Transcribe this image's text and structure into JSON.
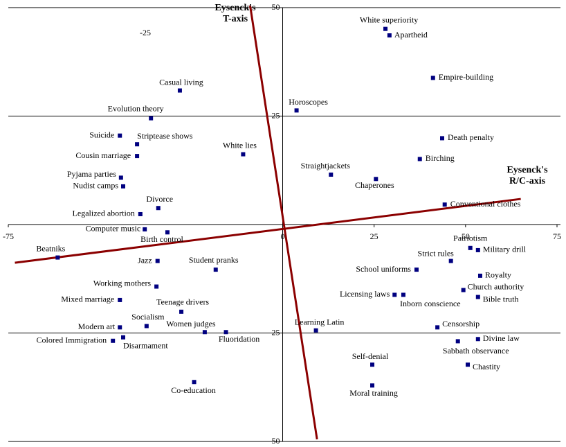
{
  "chart_data": {
    "type": "scatter",
    "color": "#000080",
    "axis_line_color": "#8b0000",
    "xlim": [
      -75,
      75
    ],
    "ylim": [
      -50,
      50
    ],
    "xticks": [
      -75,
      0,
      25,
      50,
      75
    ],
    "yticks": [
      -50,
      -25,
      25,
      50
    ],
    "grid": true,
    "annotations": [
      "-25"
    ],
    "axis_lines": [
      {
        "label": [
          "Eysenck's",
          "T-axis"
        ],
        "x": [
          -8.9,
          9.4
        ],
        "y": [
          50.5,
          -49.5
        ]
      },
      {
        "label": [
          "Eysenck's",
          "R/C-axis"
        ],
        "x": [
          -73.2,
          65.1
        ],
        "y": [
          -8.8,
          5.9
        ]
      }
    ],
    "labels": [
      "White superiority",
      "Apartheid",
      "Empire-building",
      "Casual living",
      "Horoscopes",
      "Evolution theory",
      "Death penalty",
      "Suicide",
      "Striptease shows",
      "White lies",
      "Cousin marriage",
      "Birching",
      "Straightjackets",
      "Chaperones",
      "Pyjama parties",
      "Nudist camps",
      "Conventional clothes",
      "Divorce",
      "Legalized abortion",
      "Computer music",
      "Birth control",
      "Patriotism",
      "Military drill",
      "Beatniks",
      "Strict rules",
      "Jazz",
      "Student pranks",
      "School uniforms",
      "Royalty",
      "Working mothers",
      "Church authority",
      "Licensing laws",
      "Inborn conscience",
      "Bible truth",
      "Mixed marriage",
      "Teenage drivers",
      "Censorship",
      "Socialism",
      "Modern art",
      "Learning Latin",
      "Women judges",
      "Fluoridation",
      "Disarmament",
      "Colored Immigration",
      "Divine law",
      "Sabbath observance",
      "Chastity",
      "Self-denial",
      "Moral training",
      "Co-education"
    ],
    "x": [
      28.1,
      29.2,
      41.1,
      -28.1,
      3.8,
      -36.0,
      43.6,
      -44.5,
      -39.8,
      -10.8,
      -39.8,
      37.5,
      13.2,
      25.5,
      -44.2,
      -43.6,
      44.3,
      -34.0,
      -38.9,
      -37.7,
      -31.5,
      51.3,
      53.4,
      -61.5,
      46.0,
      -34.2,
      -18.3,
      36.6,
      54.0,
      -34.5,
      49.4,
      30.6,
      33.0,
      53.4,
      -44.5,
      -27.7,
      42.3,
      -37.2,
      -44.5,
      9.1,
      -21.3,
      -15.5,
      -43.6,
      -46.4,
      53.4,
      47.9,
      50.6,
      24.5,
      24.5,
      -24.2
    ],
    "values": [
      45.1,
      43.6,
      33.8,
      30.9,
      26.3,
      24.5,
      19.9,
      20.5,
      18.5,
      16.2,
      15.8,
      15.1,
      11.5,
      10.5,
      10.8,
      8.8,
      4.6,
      3.8,
      2.4,
      -1.1,
      -1.8,
      -5.4,
      -5.9,
      -7.6,
      -8.4,
      -8.4,
      -10.4,
      -10.4,
      -11.8,
      -14.3,
      -15.1,
      -16.2,
      -16.2,
      -16.7,
      -17.4,
      -20.1,
      -23.7,
      -23.4,
      -23.7,
      -24.4,
      -24.8,
      -24.8,
      -26.0,
      -26.8,
      -26.4,
      -26.9,
      -32.3,
      -32.3,
      -37.1,
      -36.3
    ]
  }
}
